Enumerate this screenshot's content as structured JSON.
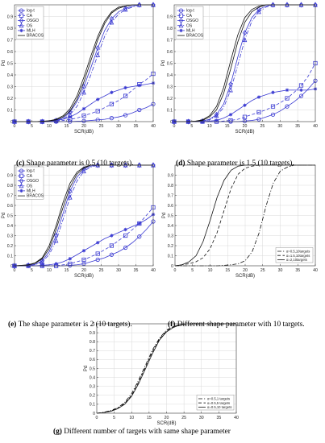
{
  "captions": [
    {
      "letter": "(c)",
      "text": "Shape parameter is 0.5 (10 targets)."
    },
    {
      "letter": "(d)",
      "text": "Shape parameter is 1.5 (10 targets)."
    },
    {
      "letter": "(e)",
      "text": "The shape parameter is 2 (10 targets)."
    },
    {
      "letter": "(f)",
      "text": "Different shape parameter with 10 targets."
    },
    {
      "letter": "(g)",
      "text": "Different number of targets with same shape parameter"
    }
  ],
  "colors": {
    "blue": "#3a3ad2",
    "black": "#111111",
    "grid": "#d9d9d9"
  },
  "chart_data": [
    {
      "type": "line",
      "id": "c",
      "xlabel": "SCR(dB)",
      "ylabel": "Pd",
      "xlim": [
        0,
        40
      ],
      "ylim": [
        0,
        1
      ],
      "xticks": [
        "0",
        "5",
        "10",
        "15",
        "20",
        "25",
        "30",
        "35",
        "40"
      ],
      "yticks": [
        "0",
        "0.1",
        "0.2",
        "0.3",
        "0.4",
        "0.5",
        "0.6",
        "0.7",
        "0.8",
        "0.9"
      ],
      "grid": true,
      "legend_position": "top-left",
      "x": [
        0,
        2,
        4,
        6,
        8,
        10,
        12,
        14,
        16,
        18,
        20,
        22,
        24,
        26,
        28,
        30,
        32,
        34,
        36,
        38,
        40
      ],
      "series": [
        {
          "name": "log-t",
          "color": "blue",
          "dash": "solid",
          "marker": "o",
          "values": [
            0,
            0,
            0,
            0,
            0,
            0,
            0,
            0,
            0,
            0.003,
            0.005,
            0.01,
            0.015,
            0.02,
            0.03,
            0.04,
            0.055,
            0.075,
            0.1,
            0.12,
            0.15
          ]
        },
        {
          "name": "CA",
          "color": "blue",
          "dash": "dash",
          "marker": "s",
          "values": [
            0,
            0,
            0,
            0,
            0,
            0,
            0.005,
            0.01,
            0.02,
            0.03,
            0.05,
            0.07,
            0.09,
            0.12,
            0.15,
            0.18,
            0.22,
            0.27,
            0.32,
            0.36,
            0.41
          ]
        },
        {
          "name": "OSGO",
          "color": "blue",
          "dash": "solid",
          "marker": "d",
          "values": [
            0,
            0,
            0,
            0,
            0,
            0.005,
            0.01,
            0.03,
            0.08,
            0.17,
            0.3,
            0.46,
            0.63,
            0.78,
            0.88,
            0.94,
            0.97,
            0.99,
            1,
            1,
            1
          ]
        },
        {
          "name": "OS",
          "color": "blue",
          "dash": "dashdot",
          "marker": "^",
          "values": [
            0,
            0,
            0,
            0,
            0,
            0.003,
            0.008,
            0.02,
            0.06,
            0.13,
            0.25,
            0.4,
            0.57,
            0.73,
            0.85,
            0.92,
            0.96,
            0.98,
            1,
            1,
            1
          ]
        },
        {
          "name": "MLH",
          "color": "blue",
          "dash": "solid",
          "marker": "*",
          "values": [
            0,
            0,
            0,
            0,
            0,
            0.005,
            0.01,
            0.02,
            0.04,
            0.07,
            0.11,
            0.15,
            0.19,
            0.22,
            0.25,
            0.27,
            0.29,
            0.3,
            0.31,
            0.32,
            0.33
          ]
        },
        {
          "name": "BRACOS",
          "color": "black",
          "dash": "solid",
          "marker": "none",
          "values": [
            0,
            0,
            0,
            0,
            0.003,
            0.008,
            0.02,
            0.05,
            0.11,
            0.22,
            0.38,
            0.56,
            0.73,
            0.86,
            0.94,
            0.98,
            0.99,
            1,
            1,
            1,
            1
          ]
        },
        {
          "name": "",
          "color": "black",
          "dash": "solid",
          "marker": "none",
          "values": [
            0,
            0,
            0,
            0,
            0.002,
            0.006,
            0.015,
            0.04,
            0.09,
            0.19,
            0.34,
            0.52,
            0.7,
            0.84,
            0.93,
            0.97,
            0.99,
            1,
            1,
            1,
            1
          ]
        }
      ]
    },
    {
      "type": "line",
      "id": "d",
      "xlabel": "SCR(dB)",
      "ylabel": "Pd",
      "xlim": [
        0,
        40
      ],
      "ylim": [
        0,
        1
      ],
      "xticks": [
        "0",
        "5",
        "10",
        "15",
        "20",
        "25",
        "30",
        "35",
        "40"
      ],
      "yticks": [
        "0",
        "0.1",
        "0.2",
        "0.3",
        "0.4",
        "0.5",
        "0.6",
        "0.7",
        "0.8",
        "0.9"
      ],
      "grid": true,
      "legend_position": "top-left",
      "x": [
        0,
        2,
        4,
        6,
        8,
        10,
        12,
        14,
        16,
        18,
        20,
        22,
        24,
        26,
        28,
        30,
        32,
        34,
        36,
        38,
        40
      ],
      "series": [
        {
          "name": "log-t",
          "color": "blue",
          "dash": "solid",
          "marker": "o",
          "values": [
            0,
            0,
            0,
            0,
            0,
            0,
            0,
            0,
            0,
            0,
            0.005,
            0.01,
            0.02,
            0.04,
            0.06,
            0.09,
            0.13,
            0.17,
            0.22,
            0.28,
            0.35
          ]
        },
        {
          "name": "CA",
          "color": "blue",
          "dash": "dash",
          "marker": "s",
          "values": [
            0,
            0,
            0,
            0,
            0,
            0,
            0,
            0.005,
            0.01,
            0.02,
            0.04,
            0.06,
            0.08,
            0.1,
            0.13,
            0.16,
            0.2,
            0.25,
            0.31,
            0.39,
            0.5
          ]
        },
        {
          "name": "OSGO",
          "color": "blue",
          "dash": "solid",
          "marker": "d",
          "values": [
            0,
            0,
            0,
            0,
            0.005,
            0.02,
            0.06,
            0.15,
            0.32,
            0.55,
            0.76,
            0.89,
            0.96,
            0.99,
            1,
            1,
            1,
            1,
            1,
            1,
            1
          ]
        },
        {
          "name": "OS",
          "color": "blue",
          "dash": "dashdot",
          "marker": "^",
          "values": [
            0,
            0,
            0,
            0,
            0.004,
            0.015,
            0.05,
            0.12,
            0.27,
            0.48,
            0.7,
            0.86,
            0.94,
            0.98,
            1,
            1,
            1,
            1,
            1,
            1,
            1
          ]
        },
        {
          "name": "MLH",
          "color": "blue",
          "dash": "solid",
          "marker": "*",
          "values": [
            0,
            0,
            0,
            0,
            0,
            0.005,
            0.01,
            0.03,
            0.06,
            0.1,
            0.14,
            0.18,
            0.21,
            0.23,
            0.25,
            0.26,
            0.27,
            0.27,
            0.27,
            0.27,
            0.28
          ]
        },
        {
          "name": "BRACOS",
          "color": "black",
          "dash": "solid",
          "marker": "none",
          "values": [
            0,
            0,
            0,
            0.004,
            0.015,
            0.05,
            0.13,
            0.29,
            0.52,
            0.74,
            0.89,
            0.96,
            0.99,
            1,
            1,
            1,
            1,
            1,
            1,
            1,
            1
          ]
        },
        {
          "name": "",
          "color": "black",
          "dash": "solid",
          "marker": "none",
          "values": [
            0,
            0,
            0,
            0.003,
            0.01,
            0.04,
            0.1,
            0.24,
            0.45,
            0.68,
            0.85,
            0.94,
            0.98,
            1,
            1,
            1,
            1,
            1,
            1,
            1,
            1
          ]
        }
      ]
    },
    {
      "type": "line",
      "id": "e",
      "xlabel": "SCR(dB)",
      "ylabel": "Pd",
      "xlim": [
        0,
        40
      ],
      "ylim": [
        0,
        1
      ],
      "xticks": [
        "0",
        "5",
        "10",
        "15",
        "20",
        "25",
        "30",
        "35",
        "40"
      ],
      "yticks": [
        "0",
        "0.1",
        "0.2",
        "0.3",
        "0.4",
        "0.5",
        "0.6",
        "0.7",
        "0.8",
        "0.9"
      ],
      "grid": true,
      "legend_position": "top-left",
      "x": [
        0,
        2,
        4,
        6,
        8,
        10,
        12,
        14,
        16,
        18,
        20,
        22,
        24,
        26,
        28,
        30,
        32,
        34,
        36,
        38,
        40
      ],
      "series": [
        {
          "name": "log-t",
          "color": "blue",
          "dash": "solid",
          "marker": "o",
          "values": [
            0,
            0,
            0,
            0,
            0,
            0,
            0,
            0,
            0.005,
            0.01,
            0.02,
            0.04,
            0.06,
            0.08,
            0.11,
            0.14,
            0.18,
            0.23,
            0.29,
            0.36,
            0.44
          ]
        },
        {
          "name": "CA",
          "color": "blue",
          "dash": "dash",
          "marker": "s",
          "values": [
            0,
            0,
            0,
            0,
            0,
            0,
            0,
            0.01,
            0.02,
            0.04,
            0.06,
            0.09,
            0.12,
            0.16,
            0.2,
            0.25,
            0.3,
            0.36,
            0.42,
            0.5,
            0.58
          ]
        },
        {
          "name": "OSGO",
          "color": "blue",
          "dash": "solid",
          "marker": "d",
          "values": [
            0,
            0,
            0.005,
            0.015,
            0.05,
            0.14,
            0.3,
            0.52,
            0.74,
            0.88,
            0.96,
            0.99,
            1,
            1,
            1,
            1,
            1,
            1,
            1,
            1,
            1
          ]
        },
        {
          "name": "OS",
          "color": "blue",
          "dash": "dashdot",
          "marker": "^",
          "values": [
            0,
            0,
            0.004,
            0.01,
            0.04,
            0.11,
            0.25,
            0.46,
            0.68,
            0.84,
            0.94,
            0.98,
            1,
            1,
            1,
            1,
            1,
            1,
            1,
            1,
            1
          ]
        },
        {
          "name": "MLH",
          "color": "blue",
          "dash": "solid",
          "marker": "*",
          "values": [
            0,
            0,
            0,
            0,
            0.005,
            0.01,
            0.02,
            0.04,
            0.07,
            0.11,
            0.15,
            0.19,
            0.23,
            0.27,
            0.3,
            0.33,
            0.36,
            0.39,
            0.42,
            0.46,
            0.51
          ]
        },
        {
          "name": "BRACOS",
          "color": "black",
          "dash": "solid",
          "marker": "none",
          "values": [
            0,
            0.005,
            0.01,
            0.03,
            0.08,
            0.2,
            0.4,
            0.63,
            0.82,
            0.93,
            0.98,
            1,
            1,
            1,
            1,
            1,
            1,
            1,
            1,
            1,
            1
          ]
        },
        {
          "name": "",
          "color": "black",
          "dash": "solid",
          "marker": "none",
          "values": [
            0,
            0.004,
            0.008,
            0.025,
            0.07,
            0.17,
            0.36,
            0.58,
            0.78,
            0.91,
            0.97,
            1,
            1,
            1,
            1,
            1,
            1,
            1,
            1,
            1,
            1
          ]
        }
      ]
    },
    {
      "type": "line",
      "id": "f",
      "xlabel": "SCR(dB)",
      "ylabel": "Pd",
      "xlim": [
        0,
        40
      ],
      "ylim": [
        0,
        1
      ],
      "xticks": [
        "0",
        "5",
        "10",
        "15",
        "20",
        "25",
        "30",
        "35",
        "40"
      ],
      "yticks": [
        "0",
        "0.1",
        "0.2",
        "0.3",
        "0.4",
        "0.5",
        "0.6",
        "0.7",
        "0.8",
        "0.9"
      ],
      "grid": true,
      "legend_position": "bottom-right",
      "x": [
        0,
        2,
        4,
        6,
        8,
        10,
        12,
        14,
        16,
        18,
        20,
        22,
        24,
        26,
        28,
        30,
        32,
        34,
        36,
        38,
        40
      ],
      "series": [
        {
          "name": "α=0.5,10targets",
          "color": "black",
          "dash": "dashdot",
          "marker": "none",
          "values": [
            0,
            0,
            0,
            0,
            0,
            0,
            0,
            0.005,
            0.01,
            0.02,
            0.05,
            0.14,
            0.33,
            0.6,
            0.82,
            0.94,
            0.98,
            1,
            1,
            1,
            1
          ]
        },
        {
          "name": "α=1.5,10targets",
          "color": "black",
          "dash": "dash",
          "marker": "none",
          "values": [
            0,
            0.01,
            0.02,
            0.04,
            0.08,
            0.17,
            0.33,
            0.55,
            0.77,
            0.91,
            0.97,
            0.99,
            1,
            1,
            1,
            1,
            1,
            1,
            1,
            1,
            1
          ]
        },
        {
          "name": "α=2,10targets",
          "color": "black",
          "dash": "solid",
          "marker": "none",
          "values": [
            0,
            0.01,
            0.04,
            0.1,
            0.24,
            0.45,
            0.68,
            0.85,
            0.95,
            0.99,
            1,
            1,
            1,
            1,
            1,
            1,
            1,
            1,
            1,
            1,
            1
          ]
        }
      ]
    },
    {
      "type": "line",
      "id": "g",
      "xlabel": "SCR(dB)",
      "ylabel": "Pd",
      "xlim": [
        0,
        40
      ],
      "ylim": [
        0,
        1
      ],
      "xticks": [
        "0",
        "5",
        "10",
        "15",
        "20",
        "25",
        "30",
        "35",
        "40"
      ],
      "yticks": [
        "0",
        "0.1",
        "0.2",
        "0.3",
        "0.4",
        "0.5",
        "0.6",
        "0.7",
        "0.8",
        "0.9",
        "1"
      ],
      "grid": true,
      "legend_position": "bottom-right",
      "x": [
        0,
        2,
        4,
        6,
        8,
        10,
        12,
        14,
        16,
        18,
        20,
        22,
        24,
        26,
        28,
        30,
        32,
        34,
        36,
        38,
        40
      ],
      "series": [
        {
          "name": "α=0.5,1 targets",
          "color": "black",
          "dash": "dashdot",
          "marker": "none",
          "values": [
            0,
            0.01,
            0.03,
            0.06,
            0.12,
            0.22,
            0.37,
            0.54,
            0.71,
            0.84,
            0.93,
            0.97,
            0.99,
            1,
            1,
            1,
            1,
            1,
            1,
            1,
            1
          ]
        },
        {
          "name": "α=0.5,5 targets",
          "color": "black",
          "dash": "dash",
          "marker": "none",
          "values": [
            0,
            0.008,
            0.025,
            0.055,
            0.11,
            0.2,
            0.35,
            0.52,
            0.69,
            0.83,
            0.92,
            0.97,
            0.99,
            1,
            1,
            1,
            1,
            1,
            1,
            1,
            1
          ]
        },
        {
          "name": "α=0.5,10 targets",
          "color": "black",
          "dash": "solid",
          "marker": "none",
          "values": [
            0,
            0.007,
            0.02,
            0.05,
            0.1,
            0.19,
            0.33,
            0.5,
            0.67,
            0.82,
            0.91,
            0.96,
            0.99,
            1,
            1,
            1,
            1,
            1,
            1,
            1,
            1
          ]
        }
      ]
    }
  ]
}
